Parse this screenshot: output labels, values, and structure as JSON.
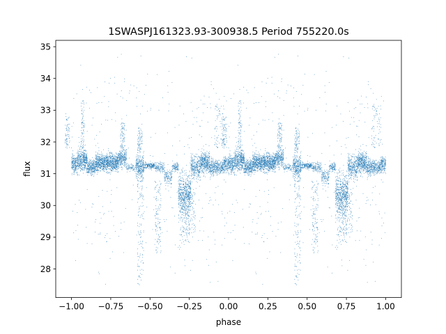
{
  "chart_data": {
    "type": "scatter",
    "title": "1SWASPJ161323.93-300938.5 Period 755220.0s",
    "xlabel": "phase",
    "ylabel": "flux",
    "xlim": [
      -1.1,
      1.1
    ],
    "ylim": [
      27.1,
      35.2
    ],
    "xticks": [
      -1.0,
      -0.75,
      -0.5,
      -0.25,
      0.0,
      0.25,
      0.5,
      0.75,
      1.0
    ],
    "xtick_labels": [
      "−1.00",
      "−0.75",
      "−0.50",
      "−0.25",
      "0.00",
      "0.25",
      "0.50",
      "0.75",
      "1.00"
    ],
    "yticks": [
      28,
      29,
      30,
      31,
      32,
      33,
      34,
      35
    ],
    "ytick_labels": [
      "28",
      "29",
      "30",
      "31",
      "32",
      "33",
      "34",
      "35"
    ],
    "grid": false,
    "point_color": "#1f77b4",
    "baseline_flux": 31.25,
    "phase_segments": [
      {
        "range": [
          0.0,
          0.04
        ],
        "center": 31.3,
        "spread": 0.35,
        "density": 1.0
      },
      {
        "range": [
          0.04,
          0.1
        ],
        "center": 31.45,
        "spread": 0.45,
        "density": 1.3
      },
      {
        "range": [
          0.1,
          0.15
        ],
        "center": 31.2,
        "spread": 0.3,
        "density": 1.0
      },
      {
        "range": [
          0.15,
          0.3
        ],
        "center": 31.35,
        "spread": 0.35,
        "density": 1.3
      },
      {
        "range": [
          0.3,
          0.35
        ],
        "center": 31.5,
        "spread": 0.4,
        "density": 1.0
      },
      {
        "range": [
          0.35,
          0.41
        ],
        "center": 31.2,
        "spread": 0.15,
        "density": 0.25
      },
      {
        "range": [
          0.41,
          0.46
        ],
        "center": 31.2,
        "spread": 0.5,
        "density": 1.2
      },
      {
        "range": [
          0.46,
          0.53
        ],
        "center": 31.25,
        "spread": 0.12,
        "density": 0.5
      },
      {
        "range": [
          0.53,
          0.59
        ],
        "center": 31.2,
        "spread": 0.2,
        "density": 0.4
      },
      {
        "range": [
          0.59,
          0.64
        ],
        "center": 30.9,
        "spread": 0.35,
        "density": 0.5
      },
      {
        "range": [
          0.64,
          0.68
        ],
        "center": 31.2,
        "spread": 0.2,
        "density": 0.5
      },
      {
        "range": [
          0.68,
          0.76
        ],
        "center": 30.4,
        "spread": 0.75,
        "density": 1.3
      },
      {
        "range": [
          0.76,
          0.82
        ],
        "center": 31.2,
        "spread": 0.45,
        "density": 1.0
      },
      {
        "range": [
          0.82,
          0.88
        ],
        "center": 31.35,
        "spread": 0.4,
        "density": 1.3
      },
      {
        "range": [
          0.88,
          0.93
        ],
        "center": 31.2,
        "spread": 0.3,
        "density": 0.9
      },
      {
        "range": [
          0.93,
          0.97
        ],
        "center": 31.2,
        "spread": 0.25,
        "density": 0.7
      },
      {
        "range": [
          0.97,
          1.0
        ],
        "center": 31.3,
        "spread": 0.3,
        "density": 1.0
      }
    ],
    "flare_features": [
      {
        "phase_range": [
          0.06,
          0.08
        ],
        "flux_range": [
          31.8,
          33.3
        ]
      },
      {
        "phase_range": [
          -0.04,
          -0.01
        ],
        "flux_range": [
          31.8,
          32.9
        ]
      },
      {
        "phase_range": [
          0.91,
          0.97
        ],
        "flux_range": [
          31.8,
          33.2
        ]
      },
      {
        "phase_range": [
          0.31,
          0.34
        ],
        "flux_range": [
          31.8,
          32.6
        ]
      },
      {
        "phase_range": [
          0.42,
          0.45
        ],
        "flux_range": [
          31.7,
          32.5
        ]
      }
    ],
    "dip_features": [
      {
        "phase_range": [
          0.42,
          0.46
        ],
        "flux_range": [
          27.5,
          30.8
        ]
      },
      {
        "phase_range": [
          0.69,
          0.75
        ],
        "flux_range": [
          28.8,
          30.3
        ]
      },
      {
        "phase_range": [
          0.53,
          0.57
        ],
        "flux_range": [
          28.5,
          30.8
        ]
      },
      {
        "phase_range": [
          0.72,
          0.79
        ],
        "flux_range": [
          29.0,
          30.5
        ]
      }
    ]
  }
}
